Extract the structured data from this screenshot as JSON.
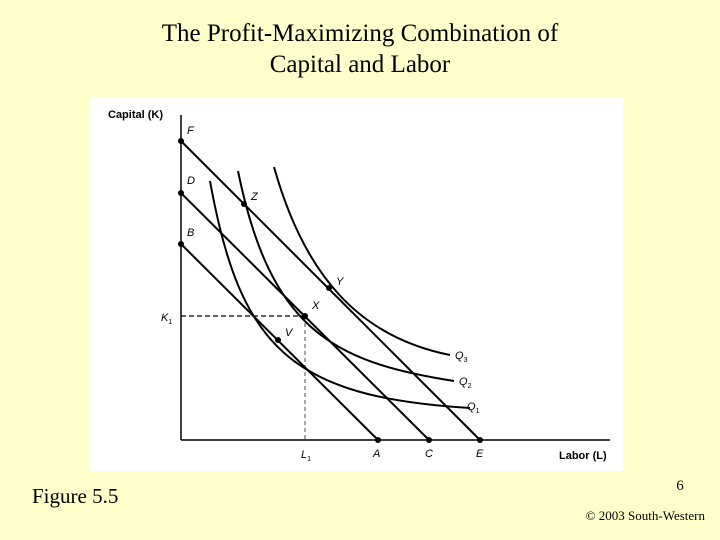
{
  "slide": {
    "title_line1": "The Profit-Maximizing Combination of",
    "title_line2": "Capital and Labor",
    "figure_label": "Figure 5.5",
    "page_number": "6",
    "copyright": "© 2003 South-Western"
  },
  "diagram": {
    "y_axis_label": "Capital (K)",
    "x_axis_label": "Labor (L)",
    "points": {
      "F": "F",
      "D": "D",
      "B": "B",
      "Z": "Z",
      "Y": "Y",
      "X": "X",
      "V": "V",
      "A": "A",
      "C": "C",
      "E": "E"
    },
    "k1_label": "K",
    "k1_sub": "1",
    "l1_label": "L",
    "l1_sub": "1",
    "isoquants": [
      {
        "letter": "Q",
        "sub": "3"
      },
      {
        "letter": "Q",
        "sub": "2"
      },
      {
        "letter": "Q",
        "sub": "1"
      }
    ]
  }
}
